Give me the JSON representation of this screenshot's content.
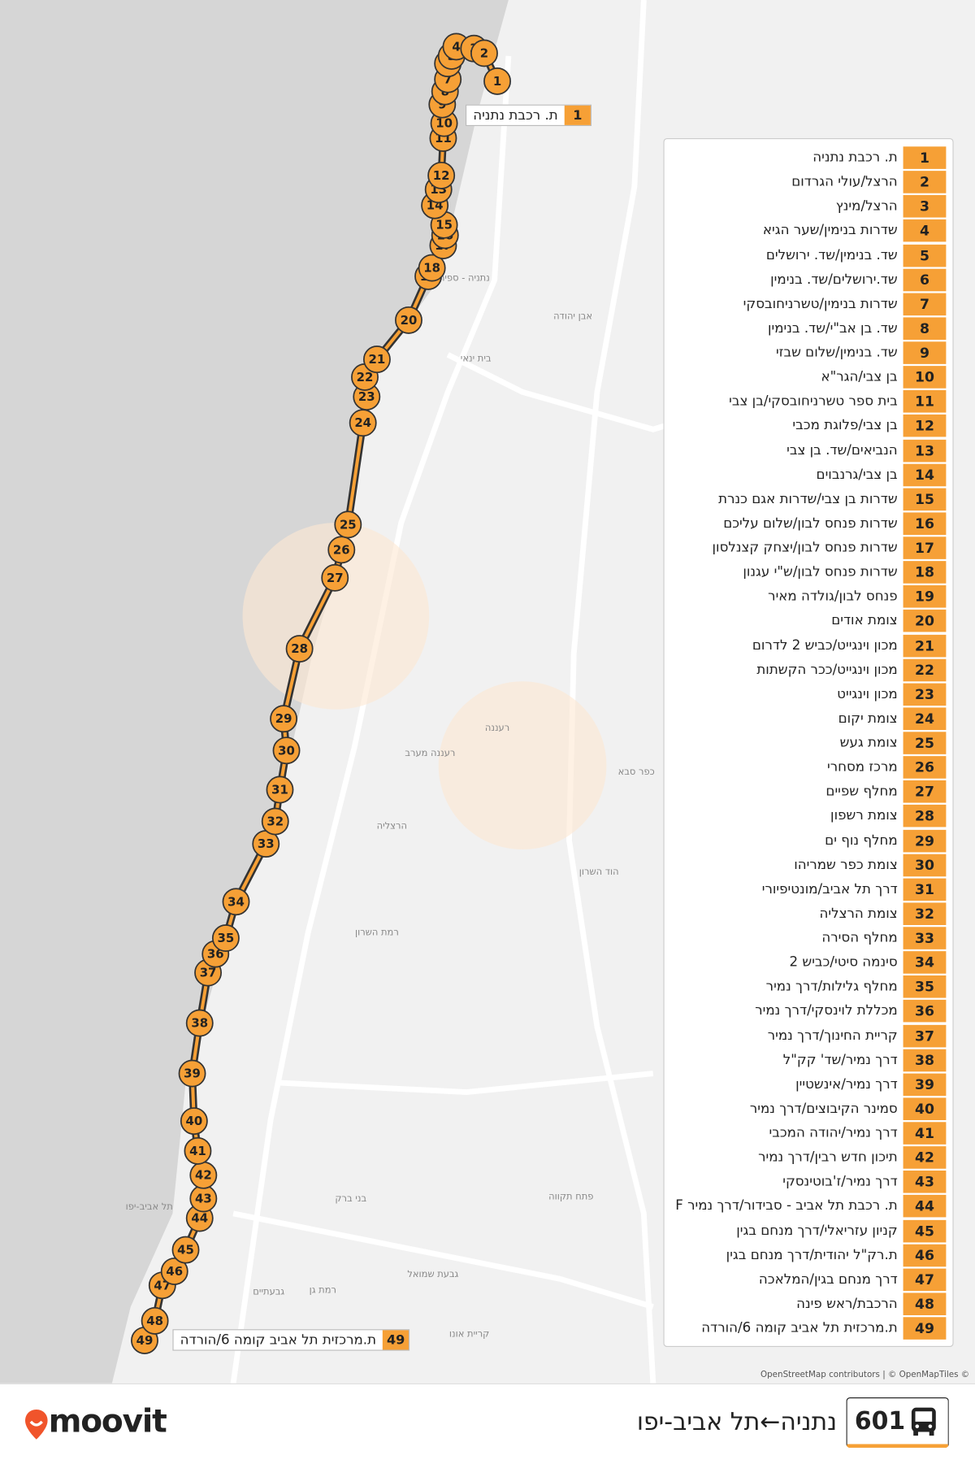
{
  "map": {
    "place_labels": [
      "נתניה - ספיר",
      "אבן יהודה",
      "בית ינאי",
      "רעננה",
      "רעננה מערב",
      "כפר סבא",
      "הרצליה",
      "הוד השרון",
      "רמת השרון",
      "פתח תקווה",
      "בני ברק",
      "רמת גן",
      "גבעתיים",
      "תל אביב-יפו",
      "גבעת שמואל",
      "קריית אונו"
    ],
    "attribution": "OpenStreetMap contributors | © OpenMapTiles ©"
  },
  "callouts": [
    {
      "number": 1,
      "label": "ת. רכבת נתניה"
    },
    {
      "number": 49,
      "label": "ת.מרכזית תל אביב קומה 6/הורדה"
    }
  ],
  "stops": [
    {
      "number": 1,
      "name": "ת. רכבת נתניה"
    },
    {
      "number": 2,
      "name": "הרצל/עולי הגרדום"
    },
    {
      "number": 3,
      "name": "הרצל/מינץ"
    },
    {
      "number": 4,
      "name": "שדרות בנימין/שער הגיא"
    },
    {
      "number": 5,
      "name": "שד. בנימין/שד. ירושלים"
    },
    {
      "number": 6,
      "name": "שד.ירושלים/שד. בנימין"
    },
    {
      "number": 7,
      "name": "שדרות בנימין/טשרניחובסקי"
    },
    {
      "number": 8,
      "name": "שד. בן אב\"י/שד. בנימין"
    },
    {
      "number": 9,
      "name": "שד. בנימין/שלום שבזי"
    },
    {
      "number": 10,
      "name": "בן צבי/הגר\"א"
    },
    {
      "number": 11,
      "name": "בית ספר טשרניחובסקי/בן צבי"
    },
    {
      "number": 12,
      "name": "בן צבי/פלוגת מכבי"
    },
    {
      "number": 13,
      "name": "הנביאים/שד. בן צבי"
    },
    {
      "number": 14,
      "name": "בן צבי/גרנבוים"
    },
    {
      "number": 15,
      "name": "שדרות בן צבי/שדרות אגם כנרת"
    },
    {
      "number": 16,
      "name": "שדרות פנחס לבון/שלום עליכם"
    },
    {
      "number": 17,
      "name": "שדרות פנחס לבון/יצחק קצנלסון"
    },
    {
      "number": 18,
      "name": "שדרות פנחס לבון/ש\"י עגנון"
    },
    {
      "number": 19,
      "name": "פנחס לבון/גולדה מאיר"
    },
    {
      "number": 20,
      "name": "צומת אודים"
    },
    {
      "number": 21,
      "name": "מכון וינגייט/כביש 2 לדרום"
    },
    {
      "number": 22,
      "name": "מכון וינגייט/ככר הקשתות"
    },
    {
      "number": 23,
      "name": "מכון וינגייט"
    },
    {
      "number": 24,
      "name": "צומת יקום"
    },
    {
      "number": 25,
      "name": "צומת געש"
    },
    {
      "number": 26,
      "name": "מרכז מסחרי"
    },
    {
      "number": 27,
      "name": "מחלף שפיים"
    },
    {
      "number": 28,
      "name": "צומת רשפון"
    },
    {
      "number": 29,
      "name": "מחלף נוף ים"
    },
    {
      "number": 30,
      "name": "צומת כפר שמריהו"
    },
    {
      "number": 31,
      "name": "דרך תל אביב/מונטיפיורי"
    },
    {
      "number": 32,
      "name": "צומת הרצליה"
    },
    {
      "number": 33,
      "name": "מחלף הסירה"
    },
    {
      "number": 34,
      "name": "סינמה סיטי/כביש 2"
    },
    {
      "number": 35,
      "name": "מחלף גלילות/דרך נמיר"
    },
    {
      "number": 36,
      "name": "מכללת לוינסקי/דרך נמיר"
    },
    {
      "number": 37,
      "name": "קריית החינוך/דרך נמיר"
    },
    {
      "number": 38,
      "name": "דרך נמיר/שד' קק\"ל"
    },
    {
      "number": 39,
      "name": "דרך נמיר/אינשטיין"
    },
    {
      "number": 40,
      "name": "סמינר הקיבוצים/דרך נמיר"
    },
    {
      "number": 41,
      "name": "דרך נמיר/יהודה המכבי"
    },
    {
      "number": 42,
      "name": "תיכון חדש רבין/דרך נמיר"
    },
    {
      "number": 43,
      "name": "דרך נמיר/ז'בוטינסקי"
    },
    {
      "number": 44,
      "name": "ת. רכבת תל אביב - סבידור/דרך נמיר F"
    },
    {
      "number": 45,
      "name": "קניון עזריאלי/דרך מנחם בגין"
    },
    {
      "number": 46,
      "name": "ת.רק\"ל יהודית/דרך מנחם בגין"
    },
    {
      "number": 47,
      "name": "דרך מנחם בגין/המלאכה"
    },
    {
      "number": 48,
      "name": "הרכבת/ראש פינה"
    },
    {
      "number": 49,
      "name": "ת.מרכזית תל אביב קומה 6/הורדה"
    }
  ],
  "footer": {
    "brand": "moovit",
    "route_number": "601",
    "route_title": "נתניה←תל אביב-יפו"
  }
}
